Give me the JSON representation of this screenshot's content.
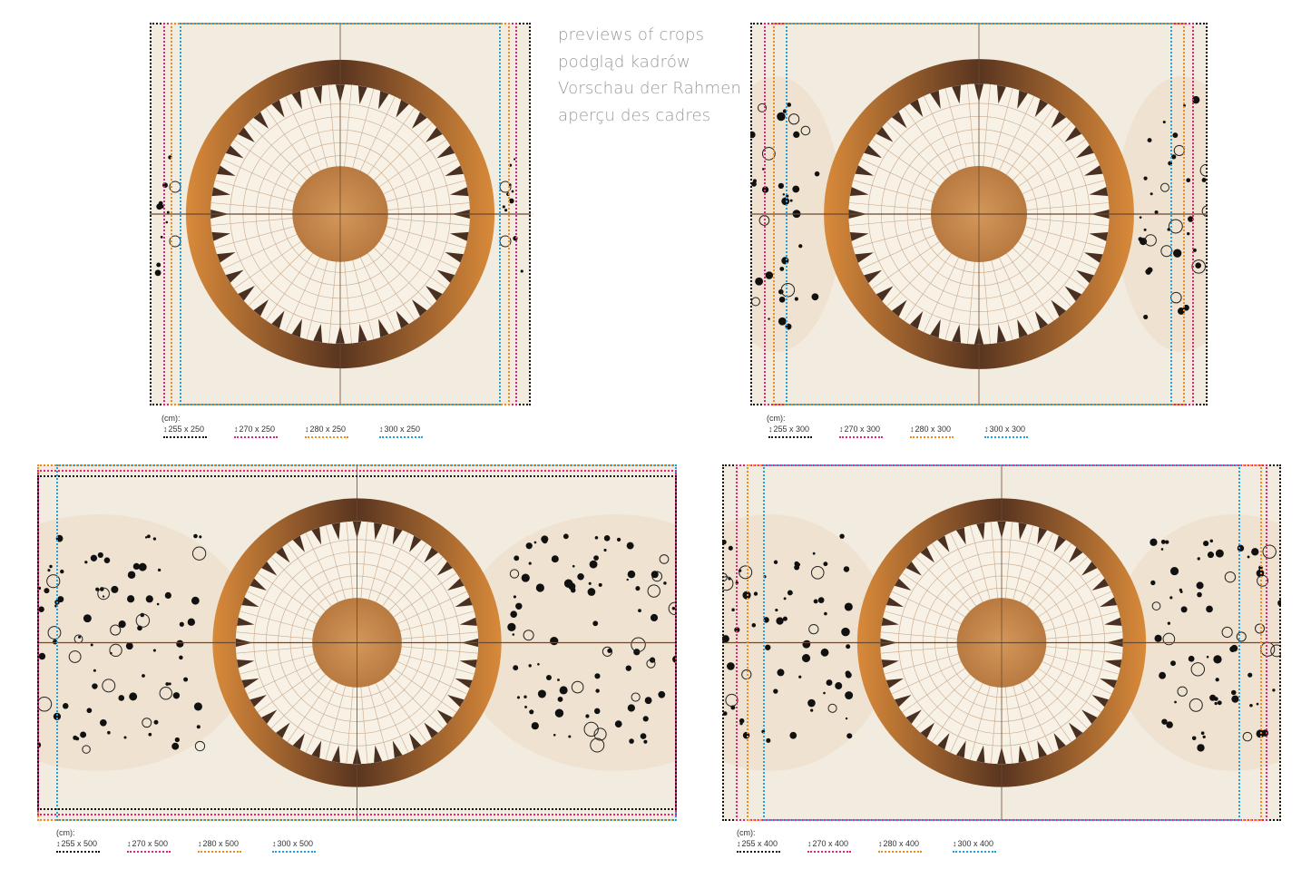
{
  "title_lines": [
    "previews of crops",
    "podgląd kadrów",
    "Vorschau der Rahmen",
    "aperçu des cadres"
  ],
  "unit_label": "(cm):",
  "colors": {
    "black": "#111111",
    "pink": "#e0207a",
    "orange": "#f08a1c",
    "blue": "#1aa3e0",
    "background": "#f2ece0"
  },
  "previews": [
    {
      "id": "a",
      "sizes": [
        "255 x 250",
        "270 x 250",
        "280 x 250",
        "300 x 250"
      ]
    },
    {
      "id": "b",
      "sizes": [
        "255 x 300",
        "270 x 300",
        "280 x 300",
        "300 x 300"
      ]
    },
    {
      "id": "c",
      "sizes": [
        "255 x 500",
        "270 x 500",
        "280 x 500",
        "300 x 500"
      ]
    },
    {
      "id": "d",
      "sizes": [
        "255 x 400",
        "270 x 400",
        "280 x 400",
        "300 x 400"
      ]
    }
  ]
}
